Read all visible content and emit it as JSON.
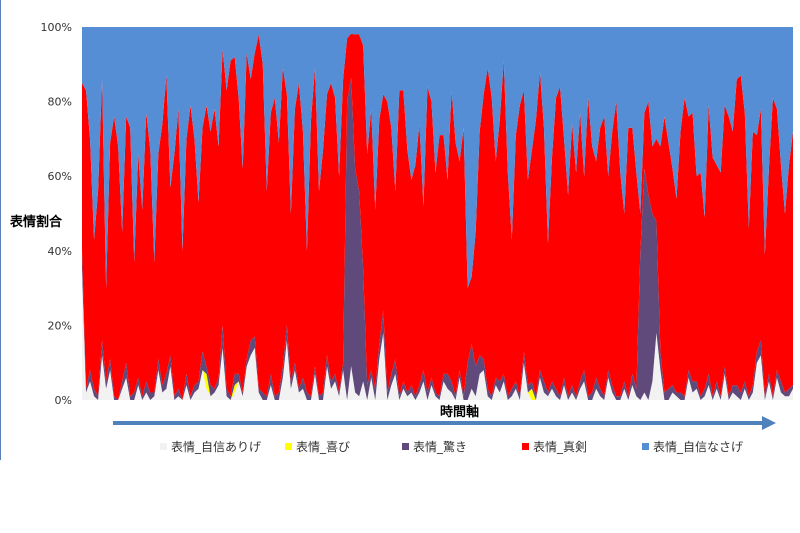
{
  "chart_data": {
    "type": "area",
    "stacked": "percent",
    "ylabel": "表情割合",
    "xlabel": "時間軸",
    "ylim": [
      0,
      100
    ],
    "yticks": [
      "0%",
      "20%",
      "40%",
      "60%",
      "80%",
      "100%"
    ],
    "ytick_values": [
      0,
      20,
      40,
      60,
      80,
      100
    ],
    "grid": false,
    "legend_position": "bottom",
    "x": [
      0,
      4,
      8,
      12,
      16,
      20,
      24,
      28,
      32,
      36,
      40,
      44,
      48,
      52,
      56,
      60,
      64,
      68,
      72,
      76,
      80,
      84,
      88,
      92,
      96,
      100,
      104,
      108,
      112,
      116,
      120,
      124,
      128,
      132,
      136,
      140,
      144,
      148,
      152,
      156,
      160,
      164,
      168,
      172,
      176,
      180,
      184,
      188,
      192,
      196,
      200,
      204,
      208,
      212,
      216,
      220,
      224,
      228,
      232,
      236,
      240,
      244,
      248,
      252,
      256,
      260,
      264,
      268,
      272,
      276,
      280,
      284,
      288,
      292,
      296,
      300,
      304,
      308,
      312,
      316,
      320,
      324,
      328,
      332,
      336,
      340,
      344,
      348,
      352,
      356,
      360,
      364,
      368,
      372,
      376,
      380,
      384,
      388,
      392,
      396,
      400,
      404,
      408,
      412,
      416,
      420,
      424,
      428,
      432,
      436,
      440,
      444,
      448,
      452,
      456,
      460,
      464,
      468,
      472,
      476,
      480,
      484,
      488,
      492,
      496,
      500,
      504,
      508,
      512,
      516,
      520,
      524,
      528,
      532,
      536,
      540,
      544,
      548,
      552,
      556,
      560,
      564,
      568,
      572,
      576,
      580,
      584,
      588,
      592,
      596,
      600,
      604,
      608,
      612,
      616,
      620,
      624,
      628,
      632,
      636,
      640,
      644,
      648,
      652,
      656,
      660,
      664,
      668,
      672,
      676,
      680,
      684,
      688,
      692,
      696,
      700,
      704,
      708
    ],
    "series": [
      {
        "name": "表情_自信ありげ",
        "color": "#f2f2f2",
        "values": [
          35,
          2,
          5,
          1,
          0,
          12,
          3,
          8,
          0,
          0,
          3,
          6,
          0,
          0,
          4,
          0,
          2,
          0,
          1,
          8,
          2,
          3,
          9,
          0,
          1,
          0,
          4,
          0,
          2,
          3,
          8,
          3,
          1,
          2,
          4,
          14,
          1,
          0,
          2,
          5,
          1,
          9,
          12,
          14,
          2,
          0,
          0,
          4,
          0,
          0,
          6,
          16,
          3,
          8,
          2,
          3,
          0,
          0,
          7,
          0,
          0,
          9,
          3,
          5,
          1,
          8,
          0,
          10,
          2,
          1,
          5,
          0,
          6,
          0,
          11,
          18,
          0,
          4,
          7,
          0,
          3,
          1,
          2,
          0,
          2,
          5,
          0,
          4,
          1,
          0,
          5,
          3,
          2,
          0,
          6,
          0,
          0,
          3,
          1,
          7,
          8,
          1,
          0,
          4,
          2,
          5,
          0,
          1,
          3,
          0,
          10,
          2,
          0,
          0,
          6,
          2,
          1,
          3,
          1,
          0,
          4,
          0,
          2,
          0,
          3,
          5,
          0,
          0,
          3,
          1,
          0,
          6,
          2,
          0,
          0,
          3,
          0,
          4,
          1,
          0,
          2,
          0,
          5,
          18,
          8,
          0,
          0,
          2,
          1,
          0,
          0,
          6,
          2,
          3,
          0,
          1,
          4,
          0,
          3,
          0,
          7,
          0,
          2,
          1,
          0,
          3,
          0,
          2,
          10,
          12,
          0,
          5,
          0,
          6,
          2,
          1,
          1,
          3
        ]
      },
      {
        "name": "表情_喜び",
        "color": "#ffff00",
        "values": [
          0,
          0,
          0,
          0,
          0,
          0,
          0,
          0,
          0,
          0,
          0,
          0,
          0,
          0,
          0,
          0,
          0,
          0,
          0,
          0,
          0,
          0,
          0,
          0,
          0,
          0,
          0,
          0,
          0,
          0,
          0,
          4,
          0,
          0,
          0,
          0,
          0,
          0,
          2,
          0,
          0,
          0,
          0,
          0,
          0,
          0,
          0,
          0,
          0,
          0,
          0,
          0,
          0,
          0,
          0,
          0,
          0,
          0,
          0,
          0,
          0,
          0,
          0,
          0,
          0,
          0,
          0,
          0,
          0,
          0,
          0,
          0,
          0,
          0,
          0,
          0,
          0,
          0,
          0,
          0,
          0,
          0,
          0,
          0,
          0,
          0,
          0,
          0,
          0,
          0,
          0,
          0,
          0,
          0,
          0,
          0,
          0,
          0,
          0,
          0,
          0,
          0,
          0,
          0,
          0,
          0,
          0,
          0,
          0,
          0,
          0,
          0,
          3,
          0,
          0,
          0,
          0,
          0,
          0,
          0,
          0,
          0,
          0,
          0,
          0,
          0,
          0,
          0,
          0,
          0,
          0,
          0,
          0,
          0,
          0,
          0,
          0,
          0,
          0,
          0,
          0,
          0,
          0,
          0,
          0,
          0,
          0,
          0,
          0,
          0,
          0,
          0,
          0,
          0,
          0,
          0,
          0,
          0,
          0,
          0,
          0,
          0,
          0,
          0,
          0,
          0,
          0,
          0,
          0,
          0,
          0,
          0,
          0,
          0,
          0,
          0,
          0,
          0
        ]
      },
      {
        "name": "表情_驚き",
        "color": "#604a7b",
        "values": [
          5,
          1,
          3,
          2,
          1,
          4,
          2,
          3,
          1,
          0,
          2,
          4,
          1,
          2,
          2,
          1,
          3,
          2,
          1,
          3,
          2,
          4,
          3,
          1,
          2,
          0,
          3,
          1,
          2,
          2,
          5,
          2,
          3,
          1,
          2,
          6,
          2,
          1,
          3,
          2,
          1,
          2,
          4,
          3,
          1,
          2,
          1,
          3,
          1,
          2,
          3,
          4,
          2,
          2,
          1,
          3,
          2,
          1,
          2,
          1,
          2,
          3,
          2,
          2,
          1,
          2,
          80,
          85,
          60,
          55,
          30,
          4,
          2,
          3,
          4,
          6,
          2,
          3,
          4,
          1,
          2,
          1,
          2,
          1,
          2,
          3,
          2,
          2,
          1,
          1,
          2,
          4,
          3,
          1,
          2,
          1,
          10,
          12,
          8,
          5,
          3,
          2,
          1,
          2,
          3,
          2,
          1,
          2,
          2,
          1,
          3,
          2,
          2,
          1,
          2,
          3,
          1,
          2,
          2,
          1,
          2,
          1,
          2,
          1,
          2,
          3,
          1,
          2,
          3,
          2,
          1,
          2,
          2,
          1,
          1,
          2,
          1,
          3,
          2,
          40,
          60,
          55,
          45,
          30,
          5,
          2,
          3,
          2,
          1,
          2,
          1,
          2,
          3,
          2,
          1,
          2,
          3,
          1,
          2,
          1,
          2,
          1,
          2,
          3,
          2,
          2,
          1,
          2,
          3,
          4,
          1,
          2,
          1,
          2,
          3,
          1,
          2,
          1
        ]
      },
      {
        "name": "表情_真剣",
        "color": "#ff0000",
        "values": [
          45,
          80,
          62,
          40,
          55,
          70,
          25,
          58,
          75,
          68,
          40,
          66,
          72,
          35,
          60,
          50,
          72,
          65,
          35,
          55,
          70,
          80,
          45,
          65,
          75,
          40,
          63,
          78,
          66,
          48,
          60,
          70,
          68,
          75,
          62,
          74,
          80,
          90,
          85,
          74,
          60,
          82,
          70,
          76,
          95,
          88,
          55,
          70,
          80,
          67,
          80,
          62,
          45,
          68,
          82,
          66,
          38,
          74,
          80,
          55,
          65,
          70,
          80,
          74,
          58,
          76,
          17,
          13,
          36,
          42,
          60,
          62,
          70,
          48,
          60,
          58,
          78,
          66,
          45,
          82,
          78,
          65,
          55,
          62,
          70,
          44,
          82,
          74,
          59,
          70,
          64,
          52,
          78,
          68,
          56,
          72,
          20,
          18,
          36,
          60,
          71,
          86,
          80,
          58,
          70,
          84,
          60,
          40,
          66,
          78,
          70,
          55,
          62,
          74,
          80,
          68,
          40,
          60,
          78,
          83,
          64,
          54,
          70,
          60,
          72,
          52,
          80,
          66,
          58,
          70,
          75,
          52,
          68,
          79,
          60,
          45,
          72,
          66,
          58,
          10,
          15,
          25,
          18,
          22,
          55,
          74,
          66,
          58,
          52,
          70,
          80,
          68,
          72,
          55,
          60,
          46,
          72,
          64,
          58,
          60,
          70,
          75,
          68,
          82,
          85,
          72,
          45,
          68,
          58,
          62,
          38,
          55,
          80,
          70,
          58,
          48,
          60,
          68
        ]
      },
      {
        "name": "表情_自信なさげ",
        "color": "#558ed5",
        "values": [
          15,
          17,
          30,
          57,
          44,
          14,
          70,
          31,
          24,
          32,
          55,
          24,
          27,
          63,
          34,
          49,
          23,
          33,
          63,
          34,
          26,
          13,
          43,
          34,
          22,
          60,
          30,
          21,
          30,
          47,
          27,
          21,
          28,
          22,
          32,
          6,
          17,
          9,
          8,
          19,
          38,
          7,
          14,
          7,
          2,
          10,
          44,
          23,
          19,
          31,
          11,
          18,
          50,
          22,
          15,
          28,
          60,
          25,
          11,
          44,
          33,
          18,
          15,
          19,
          40,
          14,
          3,
          2,
          2,
          2,
          5,
          34,
          22,
          49,
          25,
          18,
          20,
          27,
          44,
          17,
          17,
          33,
          41,
          37,
          26,
          48,
          16,
          20,
          39,
          29,
          29,
          41,
          17,
          31,
          36,
          27,
          70,
          67,
          55,
          28,
          18,
          11,
          19,
          36,
          25,
          9,
          39,
          57,
          29,
          21,
          17,
          41,
          33,
          25,
          12,
          27,
          58,
          35,
          19,
          16,
          30,
          45,
          26,
          39,
          23,
          40,
          19,
          32,
          36,
          27,
          24,
          40,
          28,
          20,
          39,
          50,
          27,
          27,
          39,
          50,
          23,
          20,
          32,
          30,
          32,
          24,
          31,
          38,
          46,
          28,
          19,
          24,
          23,
          40,
          39,
          51,
          21,
          35,
          37,
          39,
          21,
          24,
          28,
          14,
          13,
          23,
          54,
          28,
          29,
          22,
          61,
          38,
          19,
          22,
          37,
          50,
          37,
          28
        ]
      }
    ]
  }
}
